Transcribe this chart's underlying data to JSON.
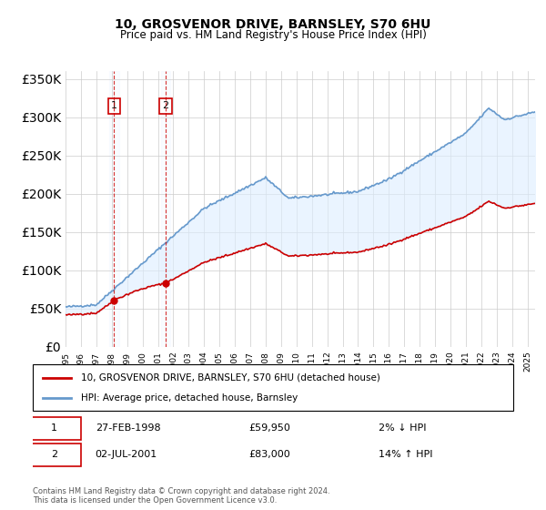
{
  "title": "10, GROSVENOR DRIVE, BARNSLEY, S70 6HU",
  "subtitle": "Price paid vs. HM Land Registry's House Price Index (HPI)",
  "legend_line1": "10, GROSVENOR DRIVE, BARNSLEY, S70 6HU (detached house)",
  "legend_line2": "HPI: Average price, detached house, Barnsley",
  "transaction1_label": "1",
  "transaction1_date": "27-FEB-1998",
  "transaction1_price": "£59,950",
  "transaction1_hpi": "2% ↓ HPI",
  "transaction2_label": "2",
  "transaction2_date": "02-JUL-2001",
  "transaction2_price": "£83,000",
  "transaction2_hpi": "14% ↑ HPI",
  "footnote": "Contains HM Land Registry data © Crown copyright and database right 2024.\nThis data is licensed under the Open Government Licence v3.0.",
  "property_color": "#cc0000",
  "hpi_color": "#6699cc",
  "shade_color": "#ddeeff",
  "grid_color": "#cccccc",
  "ylim": [
    0,
    360000
  ],
  "yticks": [
    0,
    50000,
    100000,
    150000,
    200000,
    250000,
    300000,
    350000
  ]
}
